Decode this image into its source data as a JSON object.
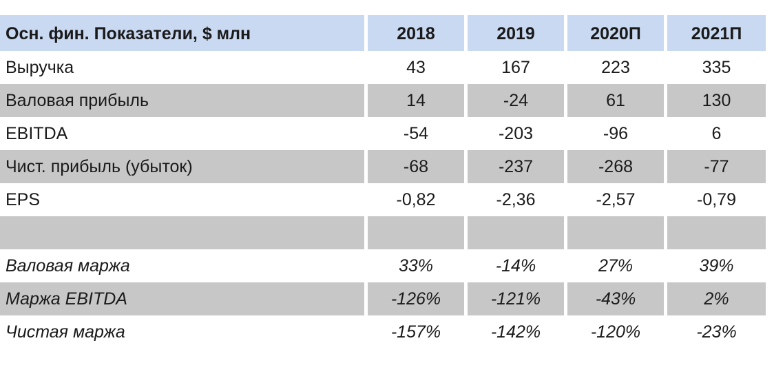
{
  "table": {
    "header": {
      "label": "Осн. фин. Показатели, $ млн",
      "years": [
        "2018",
        "2019",
        "2020П",
        "2021П"
      ]
    },
    "rows": [
      {
        "label": "Выручка",
        "values": [
          "43",
          "167",
          "223",
          "335"
        ]
      },
      {
        "label": "Валовая прибыль",
        "values": [
          "14",
          "-24",
          "61",
          "130"
        ]
      },
      {
        "label": "EBITDA",
        "values": [
          "-54",
          "-203",
          "-96",
          "6"
        ]
      },
      {
        "label": "Чист. прибыль (убыток)",
        "values": [
          "-68",
          "-237",
          "-268",
          "-77"
        ]
      },
      {
        "label": "EPS",
        "values": [
          "-0,82",
          "-2,36",
          "-2,57",
          "-0,79"
        ]
      },
      {
        "label": "",
        "values": [
          "",
          "",
          "",
          ""
        ]
      },
      {
        "label": "Валовая маржа",
        "values": [
          "33%",
          "-14%",
          "27%",
          "39%"
        ]
      },
      {
        "label": "Маржа EBITDA",
        "values": [
          "-126%",
          "-121%",
          "-43%",
          "2%"
        ]
      },
      {
        "label": "Чистая маржа",
        "values": [
          "-157%",
          "-142%",
          "-120%",
          "-23%"
        ]
      }
    ]
  },
  "colors": {
    "header_bg": "#c9d9f1",
    "shaded_bg": "#c7c7c7",
    "text": "#1a1a1a"
  }
}
